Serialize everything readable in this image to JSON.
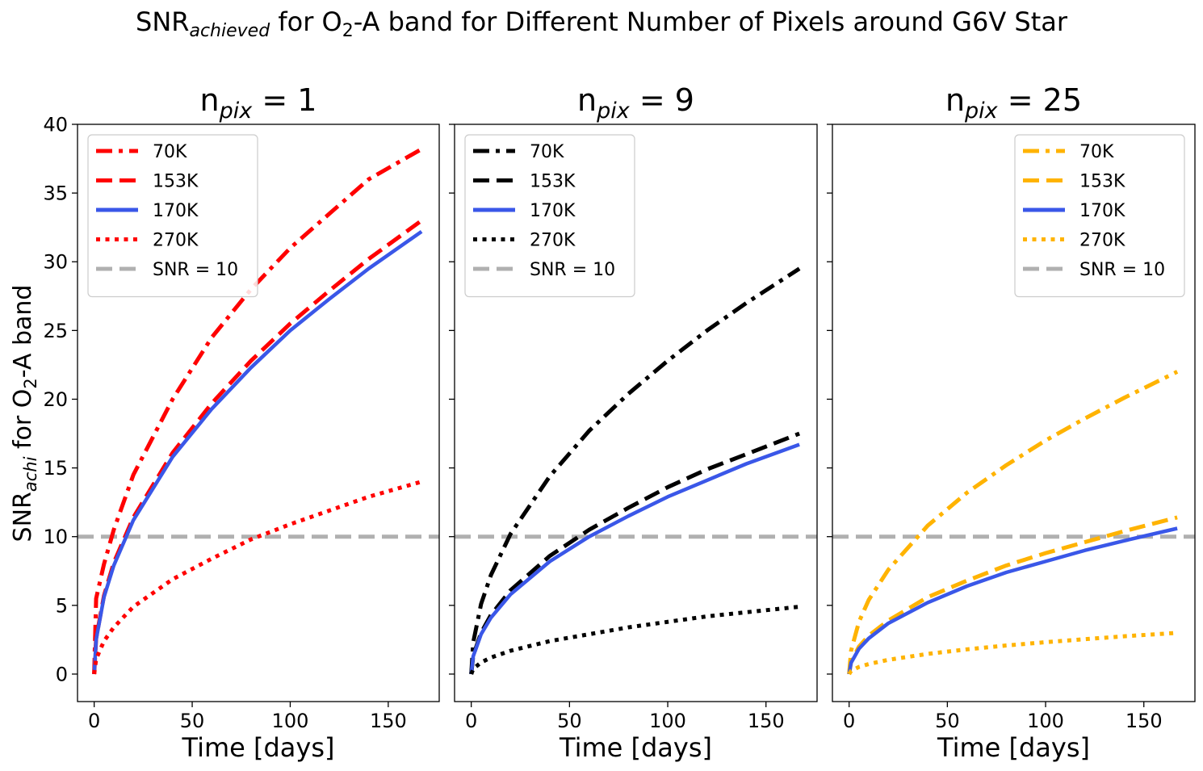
{
  "figure": {
    "title_main": "SNR",
    "title_sub": "achieved",
    "title_mid": " for O",
    "title_sub2": "2",
    "title_rest": "-A band for Different Number of Pixels around G6V Star"
  },
  "shared": {
    "xlabel": "Time [days]",
    "ylabel_main": "SNR",
    "ylabel_sub": "achi",
    "ylabel_mid": " for O",
    "ylabel_sub2": "2",
    "ylabel_rest": "-A band",
    "xlim": [
      -8.5,
      176
    ],
    "ylim": [
      -2,
      40
    ],
    "xticks": [
      0,
      50,
      100,
      150
    ],
    "yticks": [
      0,
      5,
      10,
      15,
      20,
      25,
      30,
      35,
      40
    ],
    "threshold": {
      "label": "SNR = 10",
      "value": 10,
      "color": "#b0b0b0"
    },
    "t_max": 167
  },
  "chart_data": [
    {
      "type": "line",
      "title_base": "n",
      "title_sub": "pix",
      "title_rest": " = 1",
      "xlabel": "Time [days]",
      "legend_position": "top-left",
      "series": [
        {
          "name": "70K",
          "color": "#ff0000",
          "style": "dashdot",
          "x": [
            0,
            1,
            5,
            10,
            20,
            40,
            60,
            80,
            100,
            120,
            140,
            167
          ],
          "y": [
            0,
            5.5,
            8.0,
            10.5,
            14.5,
            20.0,
            24.5,
            28.0,
            31.0,
            33.5,
            36.0,
            38.2
          ]
        },
        {
          "name": "153K",
          "color": "#ff0000",
          "style": "dashed",
          "x": [
            0,
            1,
            5,
            10,
            20,
            40,
            60,
            80,
            100,
            120,
            140,
            167
          ],
          "y": [
            0,
            2.6,
            5.7,
            8.1,
            11.4,
            16.1,
            19.7,
            22.8,
            25.5,
            27.9,
            30.2,
            33.0
          ]
        },
        {
          "name": "170K",
          "color": "#3a57e8",
          "style": "solid",
          "x": [
            0,
            1,
            5,
            10,
            20,
            40,
            60,
            80,
            100,
            120,
            140,
            167
          ],
          "y": [
            0,
            2.5,
            5.6,
            7.9,
            11.2,
            15.8,
            19.3,
            22.3,
            25.0,
            27.3,
            29.5,
            32.2
          ]
        },
        {
          "name": "270K",
          "color": "#ff0000",
          "style": "dotted",
          "x": [
            0,
            1,
            5,
            10,
            20,
            40,
            60,
            80,
            100,
            120,
            140,
            167
          ],
          "y": [
            0,
            1.1,
            2.4,
            3.4,
            4.9,
            6.9,
            8.4,
            9.8,
            10.9,
            11.9,
            12.9,
            14.0
          ]
        }
      ]
    },
    {
      "type": "line",
      "title_base": "n",
      "title_sub": "pix",
      "title_rest": " = 9",
      "xlabel": "Time [days]",
      "legend_position": "top-left",
      "series": [
        {
          "name": "70K",
          "color": "#000000",
          "style": "dashdot",
          "x": [
            0,
            1,
            5,
            10,
            20,
            40,
            60,
            80,
            100,
            120,
            140,
            167
          ],
          "y": [
            0,
            2.3,
            5.1,
            7.2,
            10.2,
            14.4,
            17.7,
            20.4,
            22.8,
            25.0,
            27.0,
            29.5
          ]
        },
        {
          "name": "153K",
          "color": "#000000",
          "style": "dashed",
          "x": [
            0,
            1,
            5,
            10,
            20,
            40,
            60,
            80,
            100,
            120,
            140,
            167
          ],
          "y": [
            0,
            1.35,
            3.0,
            4.3,
            6.1,
            8.6,
            10.5,
            12.1,
            13.6,
            14.9,
            16.0,
            17.5
          ]
        },
        {
          "name": "170K",
          "color": "#3a57e8",
          "style": "solid",
          "x": [
            0,
            1,
            5,
            10,
            20,
            40,
            60,
            80,
            100,
            120,
            140,
            167
          ],
          "y": [
            0,
            1.3,
            2.9,
            4.1,
            5.8,
            8.2,
            10.0,
            11.5,
            12.9,
            14.1,
            15.3,
            16.7
          ]
        },
        {
          "name": "270K",
          "color": "#000000",
          "style": "dotted",
          "x": [
            0,
            1,
            5,
            10,
            20,
            40,
            60,
            80,
            100,
            120,
            140,
            167
          ],
          "y": [
            0,
            0.38,
            0.85,
            1.2,
            1.7,
            2.4,
            2.9,
            3.4,
            3.8,
            4.2,
            4.5,
            4.9
          ]
        }
      ]
    },
    {
      "type": "line",
      "title_base": "n",
      "title_sub": "pix",
      "title_rest": " = 25",
      "xlabel": "Time [days]",
      "legend_position": "top-right",
      "series": [
        {
          "name": "70K",
          "color": "#ffb300",
          "style": "dashdot",
          "x": [
            0,
            1,
            5,
            10,
            20,
            40,
            60,
            80,
            100,
            120,
            140,
            167
          ],
          "y": [
            0,
            1.7,
            3.8,
            5.4,
            7.6,
            10.8,
            13.2,
            15.2,
            17.0,
            18.6,
            20.1,
            22.0
          ]
        },
        {
          "name": "153K",
          "color": "#ffb300",
          "style": "dashed",
          "x": [
            0,
            1,
            5,
            10,
            20,
            40,
            60,
            80,
            100,
            120,
            140,
            167
          ],
          "y": [
            0,
            0.88,
            2.0,
            2.8,
            3.9,
            5.6,
            6.8,
            7.9,
            8.8,
            9.6,
            10.4,
            11.4
          ]
        },
        {
          "name": "170K",
          "color": "#3a57e8",
          "style": "solid",
          "x": [
            0,
            1,
            5,
            10,
            20,
            40,
            60,
            80,
            100,
            120,
            140,
            167
          ],
          "y": [
            0,
            0.82,
            1.84,
            2.6,
            3.7,
            5.2,
            6.4,
            7.4,
            8.2,
            9.0,
            9.7,
            10.6
          ]
        },
        {
          "name": "270K",
          "color": "#ffb300",
          "style": "dotted",
          "x": [
            0,
            1,
            5,
            10,
            20,
            40,
            60,
            80,
            100,
            120,
            140,
            167
          ],
          "y": [
            0,
            0.23,
            0.52,
            0.73,
            1.04,
            1.47,
            1.8,
            2.08,
            2.32,
            2.54,
            2.75,
            3.0
          ]
        }
      ]
    }
  ]
}
